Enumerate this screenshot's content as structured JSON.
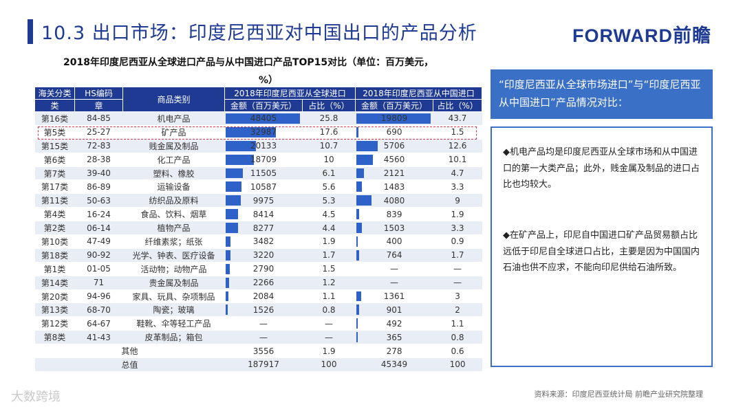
{
  "header": {
    "title": "10.3 出口市场：印度尼西亚对中国出口的产品分析",
    "logo": "FORWARD前瞻"
  },
  "table": {
    "title": "2018年印度尼西亚从全球进口产品与从中国进口产品TOP15对比（单位：百万美元，",
    "title_cont": "%）",
    "headers": {
      "category": "海关分类",
      "hs": "HS编码",
      "product": "商品类别",
      "global_group": "2018年印度尼西亚从全球进口",
      "china_group": "2018年印度尼西亚从中国进口",
      "category_sub": "类",
      "hs_sub": "章",
      "amount": "金额（百万美元）",
      "share": "占比（%）"
    },
    "rows": [
      {
        "cat": "第16类",
        "hs": "84-85",
        "product": "机电产品",
        "g_amt": "48405",
        "g_share": "25.8",
        "c_amt": "19809",
        "c_share": "43.7"
      },
      {
        "cat": "第5类",
        "hs": "25-27",
        "product": "矿产品",
        "g_amt": "32987",
        "g_share": "17.6",
        "c_amt": "690",
        "c_share": "1.5"
      },
      {
        "cat": "第15类",
        "hs": "72-83",
        "product": "贱金属及制品",
        "g_amt": "20133",
        "g_share": "10.7",
        "c_amt": "5706",
        "c_share": "12.6"
      },
      {
        "cat": "第6类",
        "hs": "28-38",
        "product": "化工产品",
        "g_amt": "18709",
        "g_share": "10",
        "c_amt": "4560",
        "c_share": "10.1"
      },
      {
        "cat": "第7类",
        "hs": "39-40",
        "product": "塑料、橡胶",
        "g_amt": "11505",
        "g_share": "6.1",
        "c_amt": "2121",
        "c_share": "4.7"
      },
      {
        "cat": "第17类",
        "hs": "86-89",
        "product": "运输设备",
        "g_amt": "10587",
        "g_share": "5.6",
        "c_amt": "1483",
        "c_share": "3.3"
      },
      {
        "cat": "第11类",
        "hs": "50-63",
        "product": "纺织品及原料",
        "g_amt": "9975",
        "g_share": "5.3",
        "c_amt": "4080",
        "c_share": "9"
      },
      {
        "cat": "第4类",
        "hs": "16-24",
        "product": "食品、饮料、烟草",
        "g_amt": "8414",
        "g_share": "4.5",
        "c_amt": "839",
        "c_share": "1.9"
      },
      {
        "cat": "第2类",
        "hs": "06-14",
        "product": "植物产品",
        "g_amt": "8277",
        "g_share": "4.4",
        "c_amt": "1503",
        "c_share": "3.3"
      },
      {
        "cat": "第10类",
        "hs": "47-49",
        "product": "纤维素浆；纸张",
        "g_amt": "3482",
        "g_share": "1.9",
        "c_amt": "400",
        "c_share": "0.9"
      },
      {
        "cat": "第18类",
        "hs": "90-92",
        "product": "光学、钟表、医疗设备",
        "g_amt": "3220",
        "g_share": "1.7",
        "c_amt": "764",
        "c_share": "1.7"
      },
      {
        "cat": "第1类",
        "hs": "01-05",
        "product": "活动物；动物产品",
        "g_amt": "2790",
        "g_share": "1.5",
        "c_amt": "—",
        "c_share": "—"
      },
      {
        "cat": "第14类",
        "hs": "71",
        "product": "贵金属及制品",
        "g_amt": "2266",
        "g_share": "1.2",
        "c_amt": "—",
        "c_share": "—"
      },
      {
        "cat": "第20类",
        "hs": "94-96",
        "product": "家具、玩具、杂项制品",
        "g_amt": "2084",
        "g_share": "1.1",
        "c_amt": "1361",
        "c_share": "3"
      },
      {
        "cat": "第13类",
        "hs": "68-70",
        "product": "陶瓷；玻璃",
        "g_amt": "1526",
        "g_share": "0.8",
        "c_amt": "901",
        "c_share": "2"
      },
      {
        "cat": "第12类",
        "hs": "64-67",
        "product": "鞋靴、伞等轻工产品",
        "g_amt": "—",
        "g_share": "—",
        "c_amt": "492",
        "c_share": "1.1"
      },
      {
        "cat": "第8类",
        "hs": "41-43",
        "product": "皮革制品；箱包",
        "g_amt": "—",
        "g_share": "—",
        "c_amt": "365",
        "c_share": "0.8"
      }
    ],
    "other": {
      "label": "其他",
      "g_amt": "3556",
      "g_share": "1.9",
      "c_amt": "278",
      "c_share": "0.6"
    },
    "total": {
      "label": "总值",
      "g_amt": "187917",
      "g_share": "100",
      "c_amt": "45349",
      "c_share": "100"
    }
  },
  "panel": {
    "heading": "“印度尼西亚从全球市场进口”与“印度尼西亚从中国进口”产品情况对比：",
    "bullet1": "◆机电产品均是印度尼西亚从全球市场和从中国进口的第一大类产品；此外，贱金属及制品的进口占比也均较大。",
    "bullet2": "◆在矿产品上，印尼自中国进口矿产品贸易额占比远低于印尼自全球进口占比，主要是因为中国国内石油也供不应求，不能向印尼供给石油所致。"
  },
  "footer": {
    "source": "资料来源：印度尼西亚统计局  前瞻产业研究院整理",
    "watermark": "大数跨境"
  },
  "colors": {
    "brand": "#1f3a93",
    "bar": "#2f62c9",
    "highlight": "#d8344d",
    "panel": "#3b70c7"
  }
}
